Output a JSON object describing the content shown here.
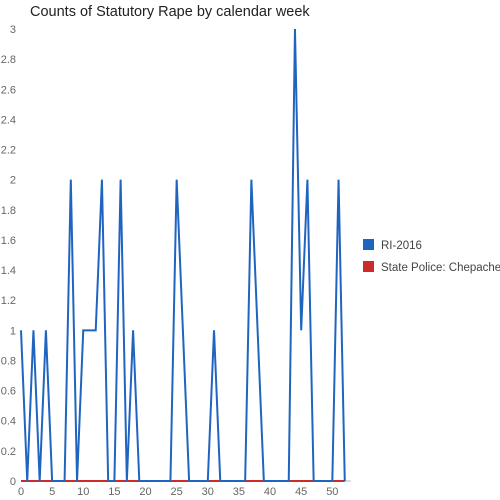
{
  "chart_data": {
    "type": "line",
    "title": "Counts of Statutory Rape by calendar week",
    "xlabel": "",
    "ylabel": "",
    "xlim": [
      0,
      53
    ],
    "ylim": [
      0,
      3
    ],
    "x_ticks": [
      "0",
      "5",
      "10",
      "15",
      "20",
      "25",
      "30",
      "35",
      "40",
      "45",
      "50"
    ],
    "y_ticks": [
      "0",
      "0.2",
      "0.4",
      "0.6",
      "0.8",
      "1",
      "1.2",
      "1.4",
      "1.6",
      "1.8",
      "2",
      "2.2",
      "2.4",
      "2.6",
      "2.8",
      "3"
    ],
    "grid": false,
    "legend_position": "right",
    "series": [
      {
        "name": "RI-2016",
        "color": "#1f65c0",
        "x": [
          0,
          1,
          2,
          3,
          4,
          5,
          6,
          7,
          8,
          9,
          10,
          11,
          12,
          13,
          14,
          15,
          16,
          17,
          18,
          19,
          20,
          21,
          22,
          23,
          24,
          25,
          26,
          27,
          28,
          29,
          30,
          31,
          32,
          33,
          34,
          35,
          36,
          37,
          38,
          39,
          40,
          41,
          42,
          43,
          44,
          45,
          46,
          47,
          48,
          49,
          50,
          51,
          52
        ],
        "values": [
          1,
          0,
          1,
          0,
          1,
          0,
          0,
          0,
          2,
          0,
          1,
          1,
          1,
          2,
          0,
          0,
          2,
          0,
          1,
          0,
          0,
          0,
          0,
          0,
          0,
          2,
          1,
          0,
          0,
          0,
          0,
          1,
          0,
          0,
          0,
          0,
          0,
          2,
          1,
          0,
          0,
          0,
          0,
          0,
          3,
          1,
          2,
          0,
          0,
          0,
          0,
          2,
          0
        ]
      },
      {
        "name": "State Police: Chepachet",
        "color": "#cc2b2b",
        "x": [
          0,
          52
        ],
        "values": [
          0,
          0
        ]
      }
    ]
  }
}
